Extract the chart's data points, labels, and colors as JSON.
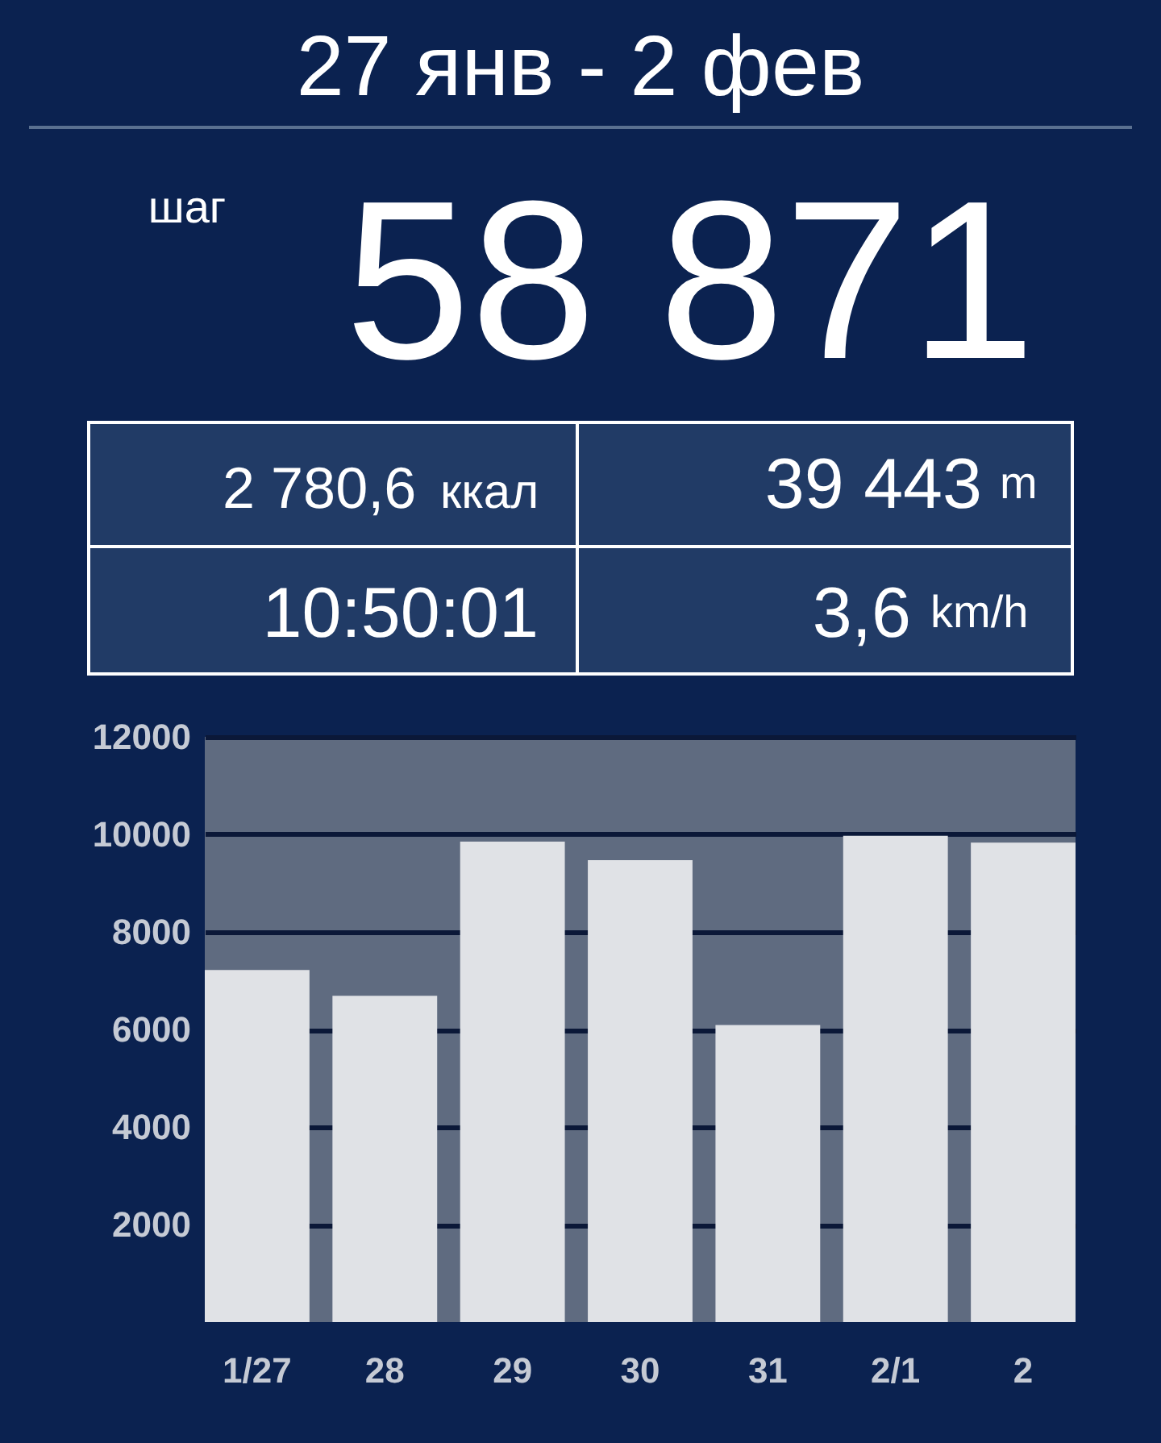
{
  "chart_data": [
    {
      "type": "other",
      "title": "27 янв - 2 фев",
      "annotations": [
        "шаг",
        "58 871",
        "2 780,6",
        "ккал",
        "39 443",
        "m",
        "10:50:01",
        "3,6",
        "km/h"
      ]
    },
    {
      "type": "bar",
      "categories": [
        "1/27",
        "28",
        "29",
        "30",
        "31",
        "2/1",
        "2"
      ],
      "values": [
        7220,
        6690,
        9850,
        9470,
        6090,
        9970,
        9830
      ],
      "color": "#e0e2e6",
      "ylim": [
        0,
        12000
      ],
      "yticks": [
        2000,
        4000,
        6000,
        8000,
        10000,
        12000
      ],
      "grid": "y",
      "bands": [
        {
          "axis": "y",
          "from": 0,
          "to": 12000,
          "color": "#5f6b80"
        }
      ]
    }
  ]
}
